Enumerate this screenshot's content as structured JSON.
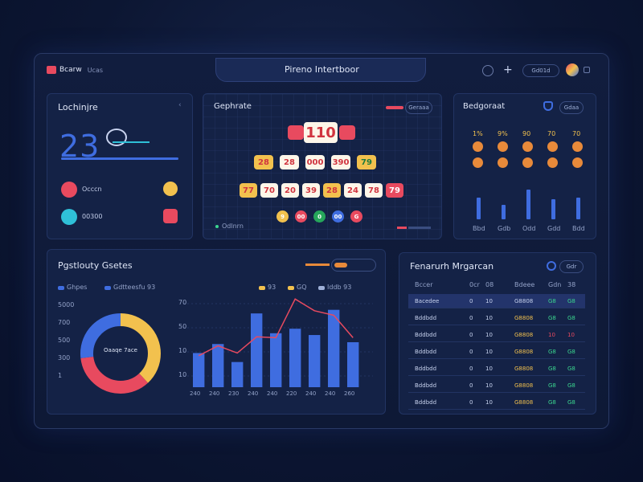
{
  "header": {
    "brand": "Bcarw",
    "brand_sub": "Ucas",
    "title": "Pireno Intertboor",
    "user_label": "Gd01d"
  },
  "card_top_left": {
    "title": "Lochinjre",
    "big_number": "23",
    "items": [
      {
        "label": "Occcn",
        "icon": "calendar-icon",
        "accent": "#e84a5f",
        "badge_color": "#f2c14e"
      },
      {
        "label": "00300",
        "icon": "message-icon",
        "accent": "#2fc0d8",
        "badge_color": "#e84a5f"
      }
    ]
  },
  "card_top_middle": {
    "title": "Gephrate",
    "filter_label": "Geraaa",
    "top_value": "110",
    "row1": [
      "28",
      "28",
      "000",
      "390",
      "79"
    ],
    "row2": [
      "77",
      "70",
      "20",
      "39",
      "28",
      "24",
      "78",
      "79"
    ],
    "coins": [
      "9",
      "00",
      "0",
      "00",
      "G"
    ],
    "footer": "Odlnrn"
  },
  "card_top_right": {
    "title": "Bedgoraat",
    "filter_label": "Gdaa",
    "col_labels": [
      "1%",
      "9%",
      "90",
      "70",
      "70"
    ],
    "bar_levels": [
      0.45,
      0.3,
      0.62,
      0.42,
      0.45
    ],
    "x_labels": [
      "Bbd",
      "Gdb",
      "Odd",
      "Gdd",
      "Bdd"
    ]
  },
  "card_bottom_left": {
    "title": "Pgstlouty Gsetes",
    "legend": [
      {
        "label": "Ghpes",
        "color": "#3f6de0"
      },
      {
        "label": "Gdtteesfu 93",
        "color": "#3f6de0"
      },
      {
        "label": "93",
        "color": "#f2c14e"
      },
      {
        "label": "GQ",
        "color": "#f2c14e"
      },
      {
        "label": "Iddb 93",
        "color": "#9fb0d8"
      }
    ],
    "donut_center": "Oaaqe 7ace",
    "donut_scale": [
      "5000",
      "700",
      "500",
      "300",
      "1"
    ],
    "donut_segments": [
      {
        "value": 38,
        "color": "#f2c14e"
      },
      {
        "value": 35,
        "color": "#e84a5f"
      },
      {
        "value": 27,
        "color": "#3f6de0"
      }
    ],
    "bar_y_labels": [
      "70",
      "50",
      "10",
      "10"
    ],
    "bar_values": [
      38,
      48,
      28,
      82,
      60,
      65,
      58,
      86,
      50
    ],
    "line_values": [
      35,
      46,
      38,
      56,
      55,
      98,
      85,
      80,
      55
    ],
    "bar_x_labels": [
      "240",
      "240",
      "230",
      "240",
      "240",
      "220",
      "240",
      "240",
      "260"
    ]
  },
  "card_bottom_right": {
    "title": "Fenarurh Mrgarcan",
    "filter_label": "Gdr",
    "headers": [
      "Bccer",
      "0cr",
      "08",
      "Bdeee",
      "Gdn",
      "38"
    ],
    "rows": [
      [
        "Bacedee",
        "0",
        "10",
        "G8808",
        "G8",
        "G8"
      ],
      [
        "Bddbdd",
        "0",
        "10",
        "G8808",
        "G8",
        "G8"
      ],
      [
        "Bddbdd",
        "0",
        "10",
        "G8808",
        "10",
        "10"
      ],
      [
        "Bddbdd",
        "0",
        "10",
        "G8808",
        "G8",
        "G8"
      ],
      [
        "Bddbdd",
        "0",
        "10",
        "G8808",
        "G8",
        "G8"
      ],
      [
        "Bddbdd",
        "0",
        "10",
        "G8808",
        "G8",
        "G8"
      ],
      [
        "Bddbdd",
        "0",
        "10",
        "G8808",
        "G8",
        "G8"
      ]
    ],
    "highlight_color": "#23346b"
  }
}
